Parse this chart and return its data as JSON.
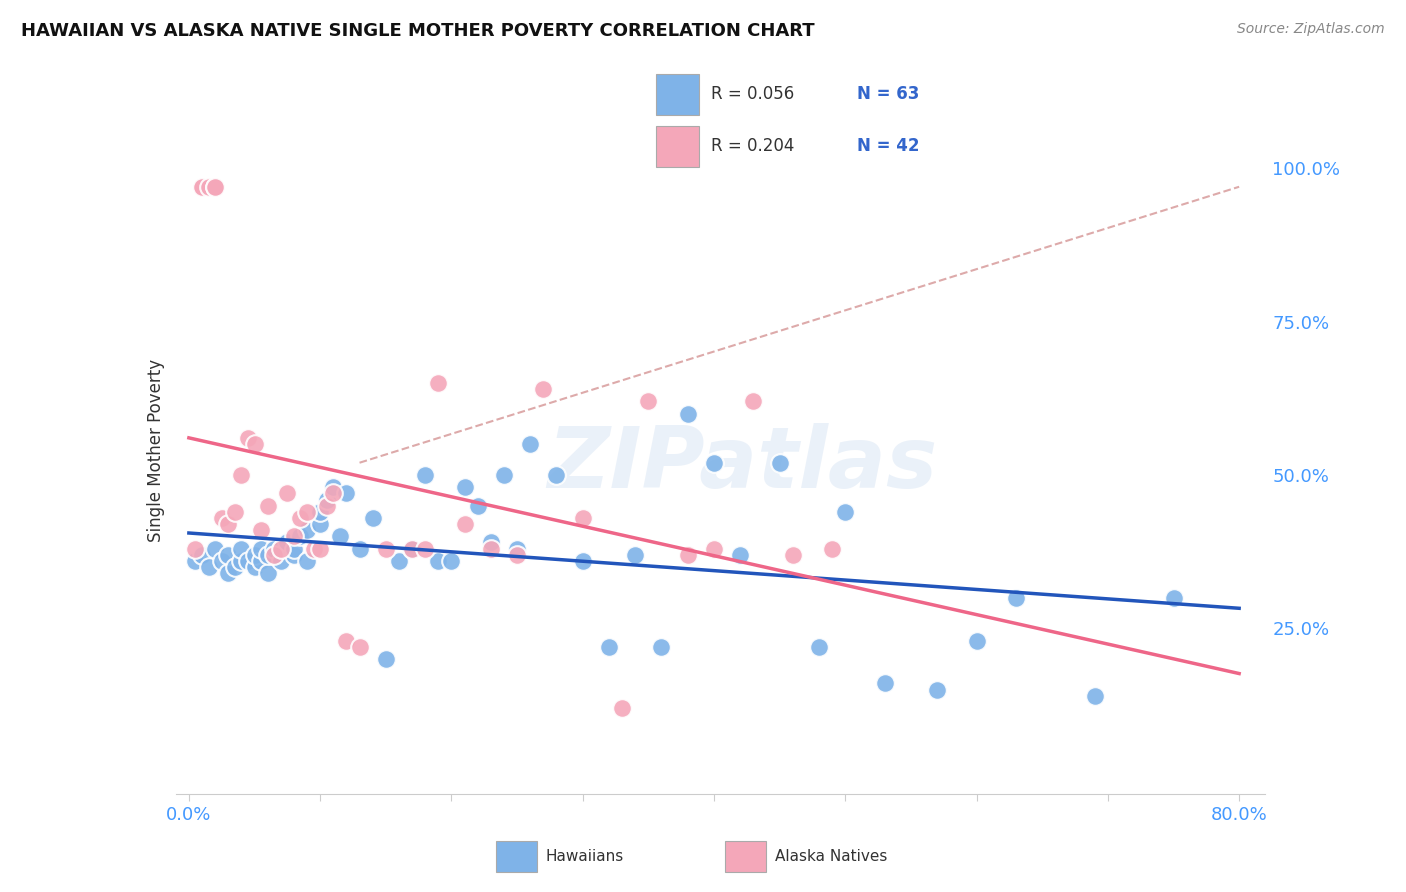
{
  "title": "HAWAIIAN VS ALASKA NATIVE SINGLE MOTHER POVERTY CORRELATION CHART",
  "source": "Source: ZipAtlas.com",
  "ylabel": "Single Mother Poverty",
  "ytick_vals": [
    0.25,
    0.5,
    0.75,
    1.0
  ],
  "ytick_labels": [
    "25.0%",
    "50.0%",
    "75.0%",
    "100.0%"
  ],
  "xlim": [
    -0.01,
    0.82
  ],
  "ylim": [
    -0.02,
    1.1
  ],
  "hawaiian_color": "#7fb3e8",
  "alaska_color": "#f4a7b9",
  "hawaiian_line_color": "#2255bb",
  "alaska_line_color": "#ee6688",
  "trendline_dash_color": "#ddaaaa",
  "legend_label_hawaiian": "Hawaiians",
  "legend_label_alaska": "Alaska Natives",
  "watermark": "ZIPatlas",
  "background_color": "#ffffff",
  "grid_color": "#e0e0e0",
  "hawaiian_x": [
    0.005,
    0.01,
    0.015,
    0.02,
    0.025,
    0.03,
    0.03,
    0.035,
    0.04,
    0.04,
    0.045,
    0.05,
    0.05,
    0.055,
    0.055,
    0.06,
    0.06,
    0.065,
    0.07,
    0.07,
    0.075,
    0.08,
    0.08,
    0.085,
    0.09,
    0.09,
    0.1,
    0.1,
    0.105,
    0.11,
    0.115,
    0.12,
    0.13,
    0.14,
    0.15,
    0.16,
    0.17,
    0.18,
    0.19,
    0.2,
    0.21,
    0.22,
    0.23,
    0.24,
    0.25,
    0.26,
    0.28,
    0.3,
    0.32,
    0.34,
    0.36,
    0.38,
    0.4,
    0.42,
    0.45,
    0.48,
    0.5,
    0.53,
    0.57,
    0.6,
    0.63,
    0.69,
    0.75
  ],
  "hawaiian_y": [
    0.36,
    0.37,
    0.35,
    0.38,
    0.36,
    0.34,
    0.37,
    0.35,
    0.36,
    0.38,
    0.36,
    0.35,
    0.37,
    0.36,
    0.38,
    0.34,
    0.37,
    0.38,
    0.36,
    0.38,
    0.39,
    0.37,
    0.38,
    0.4,
    0.36,
    0.41,
    0.42,
    0.44,
    0.46,
    0.48,
    0.4,
    0.47,
    0.38,
    0.43,
    0.2,
    0.36,
    0.38,
    0.5,
    0.36,
    0.36,
    0.48,
    0.45,
    0.39,
    0.5,
    0.38,
    0.55,
    0.5,
    0.36,
    0.22,
    0.37,
    0.22,
    0.6,
    0.52,
    0.37,
    0.52,
    0.22,
    0.44,
    0.16,
    0.15,
    0.23,
    0.3,
    0.14,
    0.3
  ],
  "alaska_x": [
    0.005,
    0.01,
    0.01,
    0.015,
    0.02,
    0.02,
    0.025,
    0.03,
    0.035,
    0.04,
    0.045,
    0.05,
    0.055,
    0.06,
    0.065,
    0.07,
    0.075,
    0.08,
    0.085,
    0.09,
    0.095,
    0.1,
    0.105,
    0.11,
    0.12,
    0.13,
    0.15,
    0.17,
    0.18,
    0.19,
    0.21,
    0.23,
    0.25,
    0.27,
    0.3,
    0.33,
    0.35,
    0.38,
    0.4,
    0.43,
    0.46,
    0.49
  ],
  "alaska_y": [
    0.38,
    0.97,
    0.97,
    0.97,
    0.97,
    0.97,
    0.43,
    0.42,
    0.44,
    0.5,
    0.56,
    0.55,
    0.41,
    0.45,
    0.37,
    0.38,
    0.47,
    0.4,
    0.43,
    0.44,
    0.38,
    0.38,
    0.45,
    0.47,
    0.23,
    0.22,
    0.38,
    0.38,
    0.38,
    0.65,
    0.42,
    0.38,
    0.37,
    0.64,
    0.43,
    0.12,
    0.62,
    0.37,
    0.38,
    0.62,
    0.37,
    0.38
  ],
  "legend_R_hawaiian": "R = 0.056",
  "legend_N_hawaiian": "N = 63",
  "legend_R_alaska": "R = 0.204",
  "legend_N_alaska": "N = 42"
}
